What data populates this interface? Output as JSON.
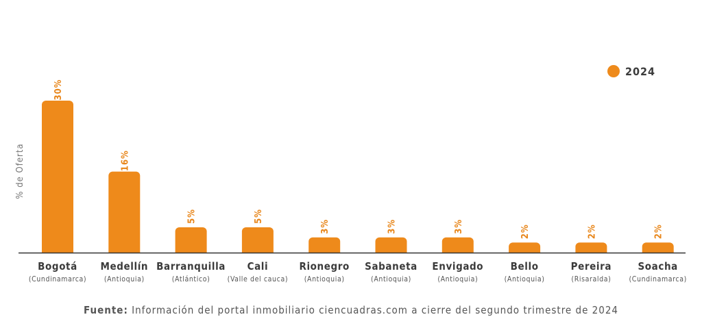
{
  "colors": {
    "bar": "#EE8A1B",
    "value_label": "#E8861A",
    "axis": "#333333"
  },
  "chart_data": {
    "type": "bar",
    "ylabel": "% de Oferta",
    "ylim": [
      0,
      30
    ],
    "grid": false,
    "legend": {
      "placement": "top-right",
      "entries": [
        "2024"
      ]
    },
    "categories": [
      "Bogotá",
      "Medellín",
      "Barranquilla",
      "Cali",
      "Rionegro",
      "Sabaneta",
      "Envigado",
      "Bello",
      "Pereira",
      "Soacha"
    ],
    "subcategories": [
      "(Cundinamarca)",
      "(Antioquia)",
      "(Atlántico)",
      "(Valle del cauca)",
      "(Antioquia)",
      "(Antioquia)",
      "(Antioquia)",
      "(Antioquia)",
      "(Risaralda)",
      "(Cundinamarca)"
    ],
    "series": [
      {
        "name": "2024",
        "values": [
          30,
          16,
          5,
          5,
          3,
          3,
          3,
          2,
          2,
          2
        ]
      }
    ],
    "value_labels": [
      "30%",
      "16%",
      "5%",
      "5%",
      "3%",
      "3%",
      "3%",
      "2%",
      "2%",
      "2%"
    ]
  },
  "source": {
    "label": "Fuente:",
    "text": " Información del portal inmobiliario ciencuadras.com a cierre del segundo trimestre de 2024"
  }
}
